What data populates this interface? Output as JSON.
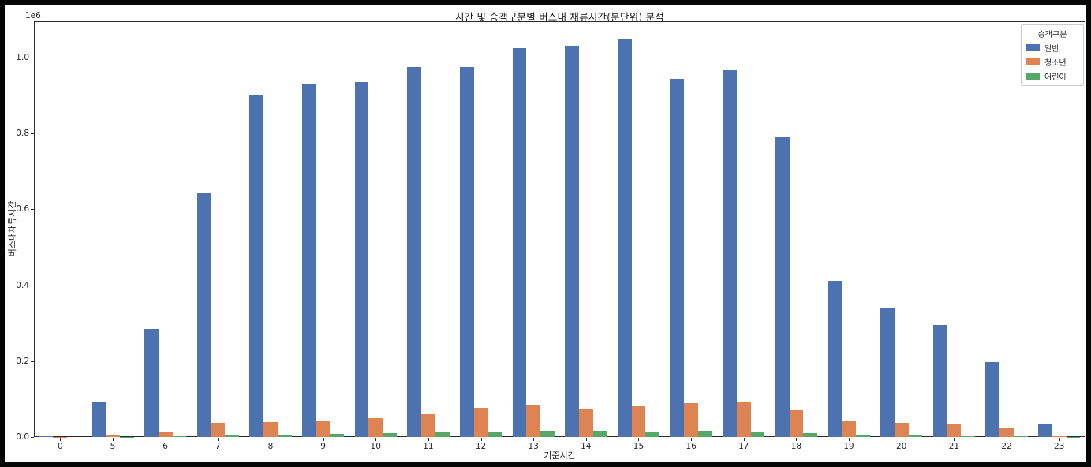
{
  "figure": {
    "frame_color": "#060606",
    "background": "#ffffff",
    "offset_text": "1e6"
  },
  "chart_data": {
    "type": "bar",
    "title": "시간 및 승객구분별 버스내 채류시간(분단위) 분석",
    "xlabel": "기준시간",
    "ylabel": "버스내채류시간",
    "categories": [
      "0",
      "5",
      "6",
      "7",
      "8",
      "9",
      "10",
      "11",
      "12",
      "13",
      "14",
      "15",
      "16",
      "17",
      "18",
      "19",
      "20",
      "21",
      "22",
      "23"
    ],
    "series": [
      {
        "name": "일반",
        "color": "#4C72B0",
        "values": [
          1500,
          93000,
          284000,
          643000,
          901000,
          930000,
          936000,
          975000,
          976000,
          1025000,
          1032000,
          1048000,
          944000,
          968000,
          790000,
          412000,
          340000,
          296000,
          197000,
          36000
        ]
      },
      {
        "name": "청소년",
        "color": "#DD8452",
        "values": [
          400,
          4000,
          13500,
          37000,
          39000,
          42500,
          50500,
          60000,
          77000,
          85000,
          74500,
          80500,
          88500,
          94500,
          70000,
          41000,
          37000,
          35000,
          25000,
          2500
        ]
      },
      {
        "name": "어린이",
        "color": "#55A868",
        "values": [
          150,
          800,
          3000,
          4500,
          6500,
          8000,
          11000,
          11500,
          14500,
          16000,
          16500,
          14000,
          16000,
          14500,
          10000,
          5500,
          3500,
          2200,
          2000,
          500
        ]
      }
    ],
    "ylim": [
      0,
      1096000
    ],
    "yticks": [
      0,
      200000,
      400000,
      600000,
      800000,
      1000000
    ],
    "ytick_labels": [
      "0.0",
      "0.2",
      "0.4",
      "0.6",
      "0.8",
      "1.0"
    ],
    "y_offset_multiplier": "1e6",
    "grid": false,
    "legend": {
      "title": "승객구분",
      "position": "upper right",
      "entries": [
        "일반",
        "청소년",
        "어린이"
      ]
    }
  }
}
